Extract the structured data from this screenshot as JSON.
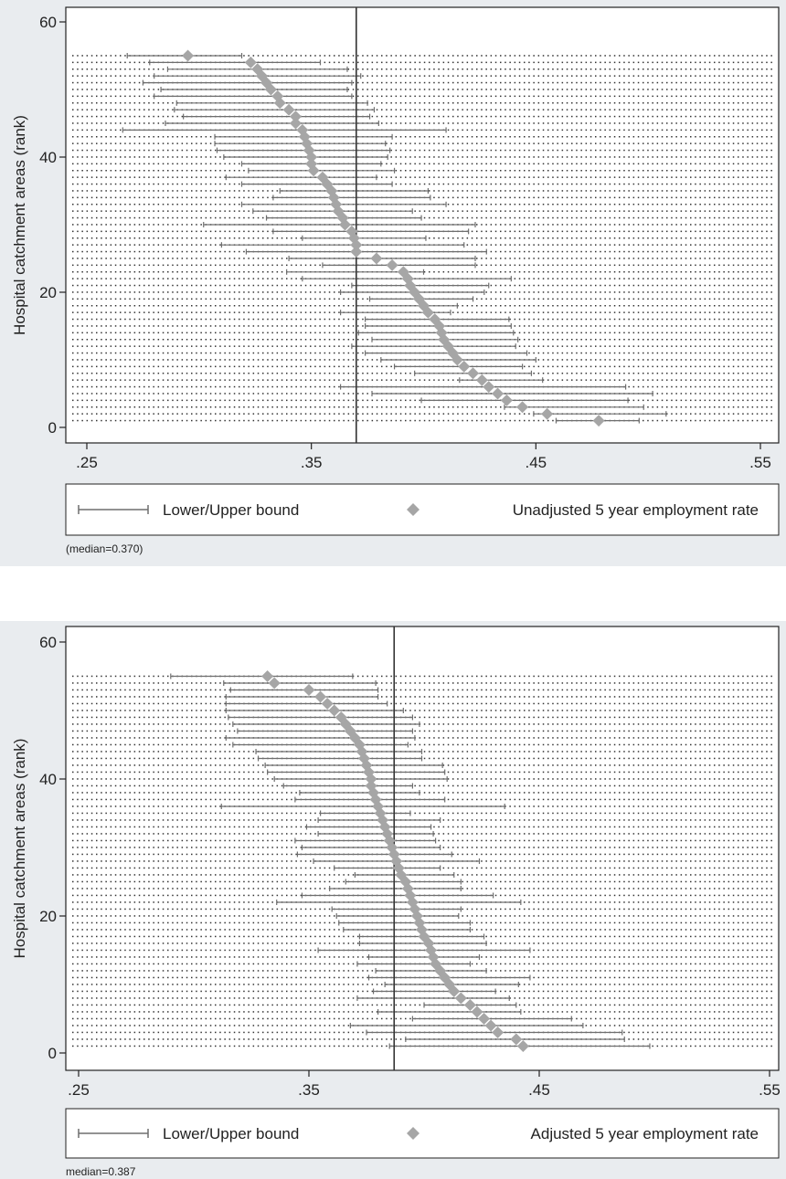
{
  "chart_data": [
    {
      "type": "scatter",
      "ylabel": "Hospital catchment areas (rank)",
      "xlim": [
        0.25,
        0.55
      ],
      "ylim": [
        0,
        60
      ],
      "x_ticks": [
        ".25",
        ".35",
        ".45",
        ".55"
      ],
      "y_ticks": [
        "0",
        "20",
        "40",
        "60"
      ],
      "median": 0.37,
      "median_note": "(median=0.370)",
      "grid": "dotted",
      "legend_position": "bottom",
      "legend": [
        "Lower/Upper bound",
        "Unadjusted 5 year employment rate"
      ],
      "colors": {
        "marker": "#a6a6a6",
        "bound": "#6e6e6e",
        "median_line": "#333333"
      },
      "series": [
        {
          "name": "Unadjusted 5 year employment rate",
          "rank": [
            1,
            2,
            3,
            4,
            5,
            6,
            7,
            8,
            9,
            10,
            11,
            12,
            13,
            14,
            15,
            16,
            17,
            18,
            19,
            20,
            21,
            22,
            23,
            24,
            25,
            26,
            27,
            28,
            29,
            30,
            31,
            32,
            33,
            34,
            35,
            36,
            37,
            38,
            39,
            40,
            41,
            42,
            43,
            44,
            45,
            46,
            47,
            48,
            49,
            50,
            51,
            52,
            53,
            54,
            55
          ],
          "value": [
            0.478,
            0.455,
            0.444,
            0.437,
            0.433,
            0.429,
            0.426,
            0.422,
            0.418,
            0.415,
            0.413,
            0.411,
            0.409,
            0.408,
            0.407,
            0.405,
            0.402,
            0.4,
            0.398,
            0.396,
            0.394,
            0.393,
            0.391,
            0.386,
            0.379,
            0.37,
            0.37,
            0.369,
            0.368,
            0.365,
            0.364,
            0.362,
            0.361,
            0.36,
            0.359,
            0.357,
            0.355,
            0.351,
            0.35,
            0.35,
            0.349,
            0.348,
            0.347,
            0.346,
            0.343,
            0.343,
            0.34,
            0.336,
            0.335,
            0.332,
            0.33,
            0.328,
            0.326,
            0.323,
            0.295
          ],
          "lower": [
            0.459,
            0.449,
            0.436,
            0.399,
            0.377,
            0.363,
            0.416,
            0.396,
            0.387,
            0.381,
            0.374,
            0.368,
            0.377,
            0.371,
            0.374,
            0.374,
            0.363,
            0.37,
            0.376,
            0.363,
            0.368,
            0.346,
            0.339,
            0.355,
            0.34,
            0.321,
            0.31,
            0.346,
            0.333,
            0.302,
            0.33,
            0.324,
            0.319,
            0.333,
            0.336,
            0.319,
            0.312,
            0.322,
            0.319,
            0.311,
            0.308,
            0.307,
            0.307,
            0.266,
            0.285,
            0.293,
            0.289,
            0.29,
            0.28,
            0.283,
            0.275,
            0.28,
            0.286,
            0.278,
            0.268
          ],
          "upper": [
            0.496,
            0.508,
            0.498,
            0.491,
            0.502,
            0.49,
            0.453,
            0.448,
            0.444,
            0.45,
            0.446,
            0.441,
            0.442,
            0.44,
            0.439,
            0.438,
            0.412,
            0.415,
            0.422,
            0.427,
            0.429,
            0.439,
            0.4,
            0.423,
            0.423,
            0.428,
            0.418,
            0.401,
            0.42,
            0.423,
            0.399,
            0.395,
            0.41,
            0.403,
            0.402,
            0.386,
            0.379,
            0.387,
            0.381,
            0.384,
            0.385,
            0.383,
            0.386,
            0.41,
            0.38,
            0.376,
            0.378,
            0.375,
            0.368,
            0.366,
            0.368,
            0.372,
            0.366,
            0.354,
            0.319
          ]
        }
      ]
    },
    {
      "type": "scatter",
      "ylabel": "Hospital catchment areas (rank)",
      "xlim": [
        0.25,
        0.55
      ],
      "ylim": [
        0,
        60
      ],
      "x_ticks": [
        ".25",
        ".35",
        ".45",
        ".55"
      ],
      "y_ticks": [
        "0",
        "20",
        "40",
        "60"
      ],
      "median": 0.387,
      "median_note": "median=0.387",
      "grid": "dotted",
      "legend_position": "bottom",
      "legend": [
        "Lower/Upper bound",
        "Adjusted 5 year employment rate"
      ],
      "colors": {
        "marker": "#a6a6a6",
        "bound": "#6e6e6e",
        "median_line": "#333333"
      },
      "series": [
        {
          "name": "Adjusted 5 year employment rate",
          "rank": [
            1,
            2,
            3,
            4,
            5,
            6,
            7,
            8,
            9,
            10,
            11,
            12,
            13,
            14,
            15,
            16,
            17,
            18,
            19,
            20,
            21,
            22,
            23,
            24,
            25,
            26,
            27,
            28,
            29,
            30,
            31,
            32,
            33,
            34,
            35,
            36,
            37,
            38,
            39,
            40,
            41,
            42,
            43,
            44,
            45,
            46,
            47,
            48,
            49,
            50,
            51,
            52,
            53,
            54,
            55
          ],
          "value": [
            0.443,
            0.44,
            0.432,
            0.429,
            0.426,
            0.423,
            0.42,
            0.416,
            0.413,
            0.411,
            0.409,
            0.407,
            0.405,
            0.404,
            0.403,
            0.402,
            0.4,
            0.399,
            0.398,
            0.397,
            0.396,
            0.395,
            0.394,
            0.393,
            0.392,
            0.39,
            0.389,
            0.388,
            0.387,
            0.386,
            0.385,
            0.384,
            0.383,
            0.382,
            0.381,
            0.38,
            0.379,
            0.378,
            0.377,
            0.377,
            0.376,
            0.375,
            0.374,
            0.373,
            0.372,
            0.37,
            0.368,
            0.366,
            0.364,
            0.361,
            0.358,
            0.355,
            0.35,
            0.335,
            0.332
          ],
          "lower": [
            0.385,
            0.392,
            0.375,
            0.368,
            0.395,
            0.38,
            0.4,
            0.371,
            0.378,
            0.383,
            0.376,
            0.379,
            0.371,
            0.376,
            0.354,
            0.372,
            0.372,
            0.365,
            0.363,
            0.362,
            0.36,
            0.336,
            0.347,
            0.359,
            0.366,
            0.37,
            0.361,
            0.352,
            0.345,
            0.347,
            0.344,
            0.354,
            0.349,
            0.354,
            0.355,
            0.312,
            0.344,
            0.346,
            0.339,
            0.335,
            0.332,
            0.331,
            0.328,
            0.327,
            0.317,
            0.314,
            0.319,
            0.317,
            0.315,
            0.314,
            0.314,
            0.314,
            0.316,
            0.313,
            0.29
          ],
          "upper": [
            0.498,
            0.487,
            0.486,
            0.469,
            0.464,
            0.442,
            0.44,
            0.437,
            0.431,
            0.441,
            0.446,
            0.427,
            0.42,
            0.424,
            0.446,
            0.427,
            0.426,
            0.42,
            0.42,
            0.415,
            0.416,
            0.442,
            0.43,
            0.416,
            0.416,
            0.413,
            0.407,
            0.424,
            0.412,
            0.407,
            0.405,
            0.404,
            0.403,
            0.407,
            0.394,
            0.435,
            0.409,
            0.398,
            0.395,
            0.41,
            0.409,
            0.408,
            0.399,
            0.399,
            0.393,
            0.396,
            0.395,
            0.398,
            0.395,
            0.391,
            0.384,
            0.38,
            0.38,
            0.379,
            0.369
          ]
        }
      ]
    }
  ]
}
